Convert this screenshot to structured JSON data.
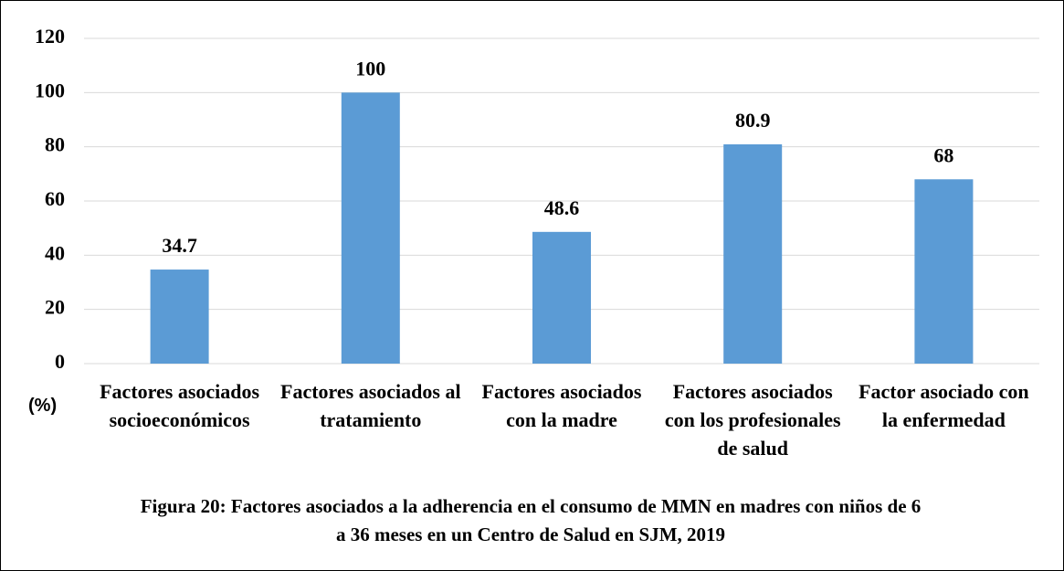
{
  "chart_data": {
    "type": "bar",
    "title": "Figura 20: Factores asociados a la adherencia en el consumo de MMN en madres con niños de 6 a 36 meses en un Centro de Salud en SJM, 2019",
    "y_label": "(%)",
    "categories": [
      "Factores asociados socioeconómicos",
      "Factores asociados al tratamiento",
      "Factores asociados con la madre",
      "Factores asociados con los profesionales de salud",
      "Factor asociado con la enfermedad"
    ],
    "values": [
      34.7,
      100,
      48.6,
      80.9,
      68
    ],
    "color": "#5b9bd5",
    "ylim": [
      0,
      120
    ],
    "yticks": [
      0,
      20,
      40,
      60,
      80,
      100,
      120
    ],
    "grid": true
  }
}
